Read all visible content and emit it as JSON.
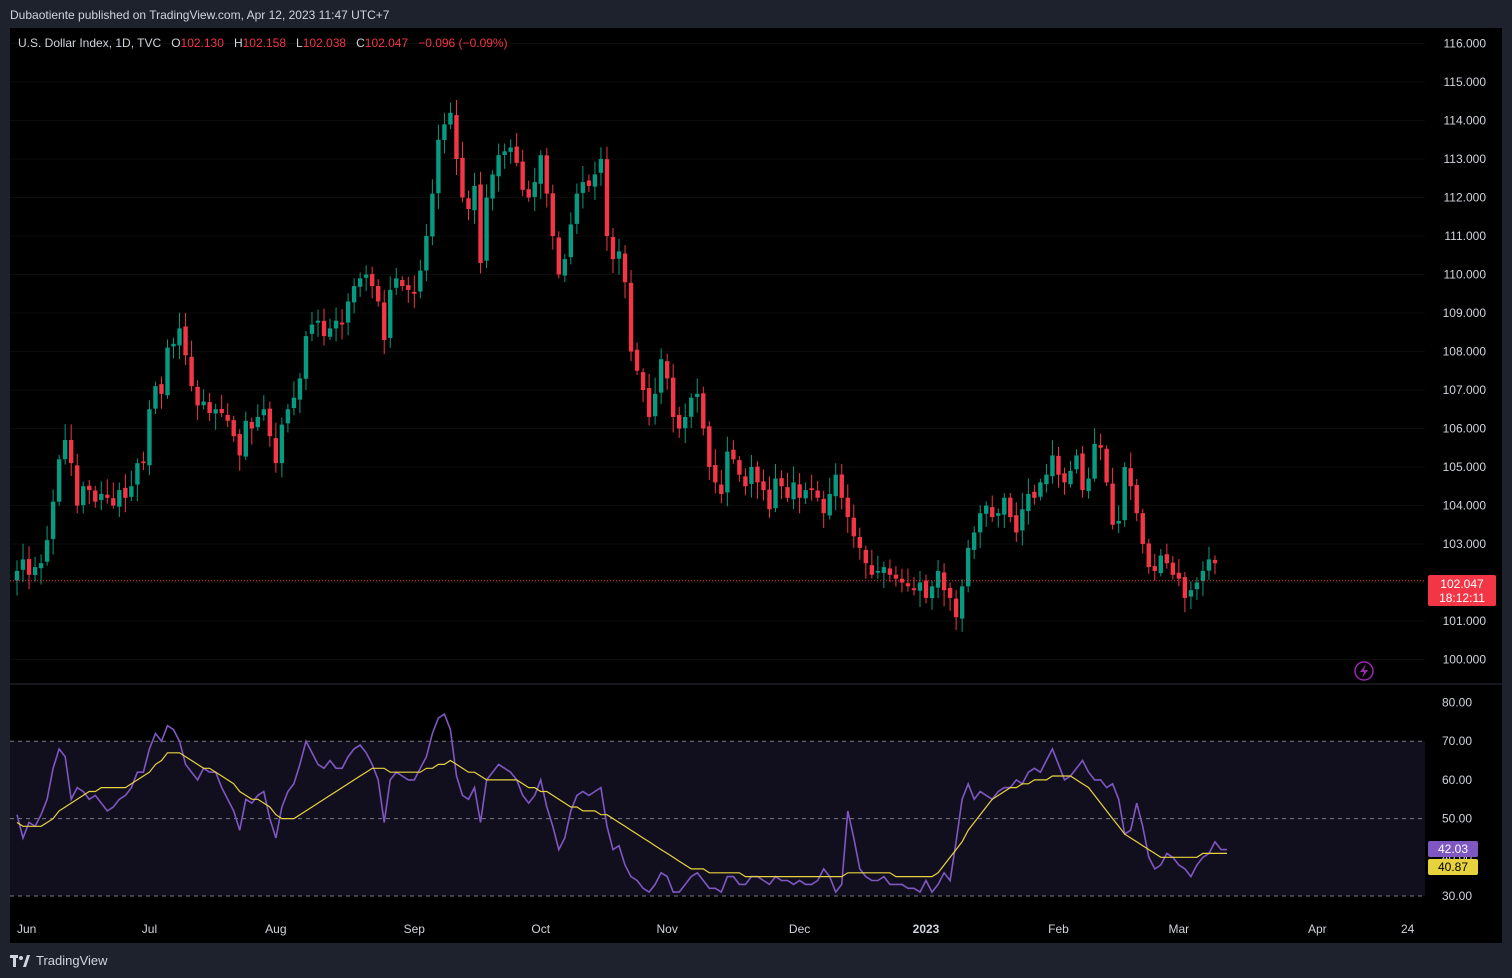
{
  "header": {
    "published": "Dubaotiente published on TradingView.com, Apr 12, 2023 11:47 UTC+7"
  },
  "legend": {
    "symbol": "U.S. Dollar Index, 1D, TVC",
    "o_label": "O",
    "o": "102.130",
    "h_label": "H",
    "h": "102.158",
    "l_label": "L",
    "l": "102.038",
    "c_label": "C",
    "c": "102.047",
    "change": "−0.096 (−0.09%)"
  },
  "price_tag": {
    "value": "102.047",
    "countdown": "18:12:11"
  },
  "rsi_tags": {
    "rsi": "42.03",
    "ma": "40.87"
  },
  "footer": {
    "brand": "TradingView"
  },
  "colors": {
    "up": "#089981",
    "down": "#f23645",
    "rsi": "#7e57c2",
    "rsi_ma": "#e8d33f",
    "bg": "#000000",
    "frame": "#1e222d"
  },
  "chart_data": [
    {
      "type": "candlestick",
      "ylim": [
        99.5,
        116.5
      ],
      "price_ticks": [
        "116.000",
        "115.000",
        "114.000",
        "113.000",
        "112.000",
        "111.000",
        "110.000",
        "109.000",
        "108.000",
        "107.000",
        "106.000",
        "105.000",
        "104.000",
        "103.000",
        "102.000",
        "101.000",
        "100.000"
      ],
      "x_labels": [
        {
          "label": "Jun",
          "i": 0
        },
        {
          "label": "Jul",
          "i": 22
        },
        {
          "label": "Aug",
          "i": 43
        },
        {
          "label": "Sep",
          "i": 66
        },
        {
          "label": "Oct",
          "i": 87
        },
        {
          "label": "Nov",
          "i": 108
        },
        {
          "label": "Dec",
          "i": 130
        },
        {
          "label": "2023",
          "i": 151
        },
        {
          "label": "Feb",
          "i": 173
        },
        {
          "label": "Mar",
          "i": 193
        },
        {
          "label": "Apr",
          "i": 216
        },
        {
          "label": "24",
          "i": 231
        }
      ],
      "close": [
        102.3,
        102.6,
        102.2,
        102.4,
        102.5,
        103.1,
        104.1,
        105.2,
        105.7,
        105.1,
        104.0,
        104.5,
        104.4,
        104.1,
        104.3,
        104.2,
        104.0,
        104.4,
        104.2,
        104.5,
        105.1,
        105.1,
        106.5,
        107.1,
        106.9,
        108.1,
        108.2,
        108.6,
        107.9,
        107.1,
        106.6,
        106.7,
        106.4,
        106.5,
        106.4,
        106.2,
        105.8,
        105.3,
        106.2,
        106.0,
        106.3,
        106.5,
        105.8,
        105.1,
        106.1,
        106.5,
        106.8,
        107.3,
        108.4,
        108.7,
        108.8,
        108.4,
        108.6,
        108.8,
        108.7,
        109.3,
        109.7,
        109.9,
        110.0,
        109.7,
        109.3,
        108.3,
        109.6,
        109.9,
        109.7,
        109.6,
        109.5,
        110.1,
        111.0,
        112.1,
        113.5,
        113.9,
        114.2,
        113.0,
        112.0,
        111.7,
        112.3,
        110.3,
        112.0,
        112.6,
        113.1,
        113.2,
        113.3,
        112.9,
        112.2,
        112.0,
        112.4,
        113.1,
        112.1,
        111.0,
        110.0,
        110.4,
        111.3,
        112.1,
        112.4,
        112.3,
        112.6,
        113.0,
        111.0,
        110.4,
        110.6,
        109.8,
        108.0,
        107.5,
        107.0,
        106.3,
        106.9,
        107.8,
        107.3,
        106.3,
        106.0,
        106.3,
        106.8,
        106.9,
        106.0,
        105.0,
        104.6,
        104.3,
        105.4,
        105.2,
        104.8,
        104.5,
        105.0,
        104.6,
        104.4,
        103.9,
        104.7,
        104.5,
        104.2,
        104.6,
        104.2,
        104.4,
        104.4,
        104.2,
        103.8,
        104.3,
        104.8,
        104.2,
        103.7,
        103.2,
        102.9,
        102.5,
        102.2,
        102.3,
        102.4,
        102.2,
        102.1,
        102.0,
        101.9,
        101.8,
        102.0,
        101.6,
        101.9,
        102.3,
        101.8,
        101.6,
        101.1,
        101.9,
        102.9,
        103.3,
        103.8,
        104.0,
        103.7,
        103.8,
        104.2,
        103.7,
        103.3,
        103.9,
        104.3,
        104.2,
        104.6,
        104.8,
        105.3,
        104.8,
        104.6,
        104.9,
        105.3,
        104.4,
        104.7,
        105.6,
        105.5,
        104.6,
        103.5,
        103.6,
        105.0,
        104.5,
        103.8,
        103.0,
        102.4,
        102.3,
        102.7,
        102.5,
        102.2,
        102.1,
        101.6,
        101.8,
        102.0,
        102.3,
        102.6,
        102.5
      ],
      "up_color": "#089981",
      "down_color": "#f23645",
      "last_price": 102.047
    },
    {
      "type": "line",
      "ylim": [
        28,
        82
      ],
      "y_ticks": [
        "80.00",
        "70.00",
        "60.00",
        "50.00",
        "40.00",
        "30.00"
      ],
      "bands": [
        70,
        50,
        30
      ],
      "series": [
        {
          "values": [
            51,
            45,
            49,
            48,
            51,
            55,
            63,
            68,
            66,
            55,
            58,
            57,
            55,
            56,
            54,
            52,
            53,
            55,
            56,
            58,
            62,
            62,
            68,
            72,
            70,
            74,
            73,
            70,
            64,
            62,
            60,
            63,
            62,
            62,
            58,
            55,
            52,
            47,
            55,
            54,
            56,
            57,
            50,
            45,
            53,
            57,
            59,
            64,
            70,
            67,
            64,
            63,
            65,
            63,
            63,
            66,
            68,
            69,
            67,
            64,
            60,
            49,
            60,
            62,
            61,
            60,
            60,
            63,
            66,
            72,
            76,
            77,
            73,
            61,
            56,
            55,
            58,
            49,
            60,
            62,
            64,
            63,
            62,
            60,
            56,
            54,
            56,
            60,
            53,
            48,
            42,
            45,
            52,
            56,
            57,
            56,
            57,
            58,
            48,
            42,
            43,
            38,
            35,
            34,
            32,
            31,
            33,
            36,
            35,
            31,
            31,
            33,
            35,
            36,
            34,
            32,
            32,
            31,
            35,
            35,
            33,
            33,
            35,
            35,
            34,
            33,
            35,
            34,
            34,
            33,
            34,
            33,
            33,
            34,
            37,
            35,
            31,
            33,
            52,
            45,
            37,
            35,
            34,
            34,
            35,
            33,
            33,
            33,
            32,
            32,
            31,
            34,
            31,
            33,
            36,
            34,
            44,
            55,
            59,
            55,
            57,
            56,
            55,
            57,
            58,
            58,
            60,
            59,
            62,
            63,
            62,
            65,
            68,
            64,
            60,
            61,
            63,
            65,
            62,
            60,
            60,
            58,
            59,
            55,
            46,
            47,
            54,
            48,
            40,
            37,
            38,
            41,
            40,
            38,
            37,
            35,
            38,
            40,
            41,
            44,
            42,
            42
          ]
        },
        {
          "values": [
            49,
            48,
            48,
            48,
            48,
            49,
            50,
            52,
            53,
            54,
            55,
            56,
            57,
            57,
            58,
            58,
            58,
            58,
            58,
            59,
            60,
            61,
            62,
            64,
            65,
            67,
            67,
            67,
            66,
            65,
            64,
            63,
            63,
            62,
            61,
            60,
            59,
            57,
            56,
            55,
            55,
            54,
            53,
            51,
            50,
            50,
            50,
            51,
            52,
            53,
            54,
            55,
            56,
            57,
            58,
            59,
            60,
            61,
            62,
            63,
            63,
            63,
            62,
            62,
            62,
            62,
            62,
            62,
            63,
            63,
            64,
            64,
            65,
            64,
            63,
            62,
            62,
            61,
            60,
            60,
            60,
            60,
            60,
            60,
            59,
            58,
            58,
            57,
            57,
            56,
            55,
            54,
            53,
            53,
            52,
            52,
            52,
            51,
            51,
            50,
            49,
            48,
            47,
            46,
            45,
            44,
            43,
            42,
            41,
            40,
            39,
            38,
            37,
            37,
            37,
            36,
            36,
            36,
            36,
            36,
            36,
            35,
            35,
            35,
            35,
            35,
            35,
            35,
            35,
            35,
            35,
            35,
            35,
            35,
            35,
            35,
            35,
            35,
            36,
            36,
            36,
            36,
            36,
            36,
            36,
            36,
            35,
            35,
            35,
            35,
            35,
            35,
            35,
            36,
            38,
            40,
            42,
            44,
            47,
            49,
            51,
            53,
            55,
            56,
            57,
            58,
            58,
            59,
            59,
            60,
            60,
            60,
            61,
            61,
            61,
            61,
            60,
            59,
            58,
            56,
            54,
            52,
            50,
            48,
            46,
            45,
            44,
            43,
            42,
            41,
            40,
            40,
            40,
            40,
            40,
            40,
            40,
            41,
            41,
            41,
            41,
            41
          ]
        }
      ]
    }
  ]
}
